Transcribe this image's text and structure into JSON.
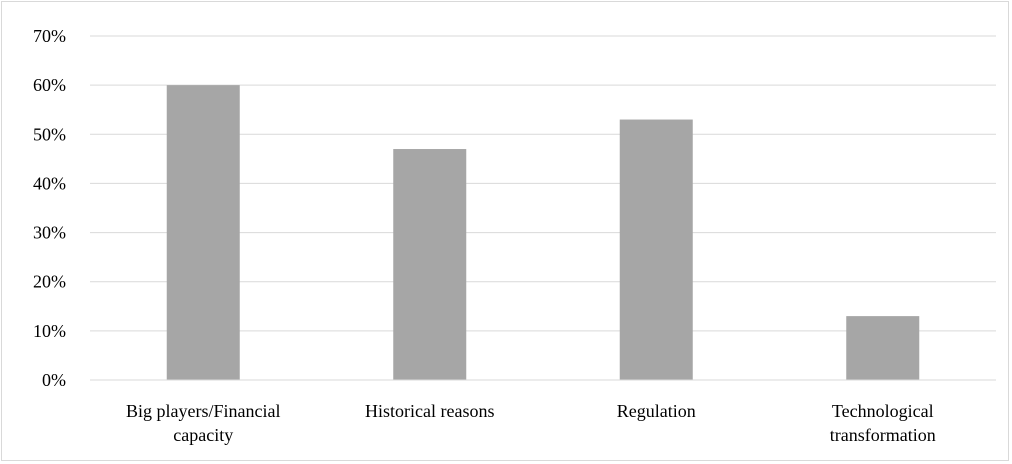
{
  "chart_data": {
    "type": "bar",
    "categories": [
      "Big players/Financial capacity",
      "Historical reasons",
      "Regulation",
      "Technological transformation"
    ],
    "category_label_lines": [
      [
        "Big players/Financial",
        "capacity"
      ],
      [
        "Historical reasons"
      ],
      [
        "Regulation"
      ],
      [
        "Technological",
        "transformation"
      ]
    ],
    "values": [
      0.6,
      0.47,
      0.53,
      0.13
    ],
    "ylim": [
      0,
      0.7
    ],
    "yticks": [
      0,
      0.1,
      0.2,
      0.3,
      0.4,
      0.5,
      0.6,
      0.7
    ],
    "ytick_labels": [
      "0%",
      "10%",
      "20%",
      "30%",
      "40%",
      "50%",
      "60%",
      "70%"
    ],
    "grid": true,
    "legend": "none",
    "bar_color": "#a6a6a6",
    "grid_color": "#d9d9d9",
    "title": "",
    "xlabel": "",
    "ylabel": ""
  }
}
